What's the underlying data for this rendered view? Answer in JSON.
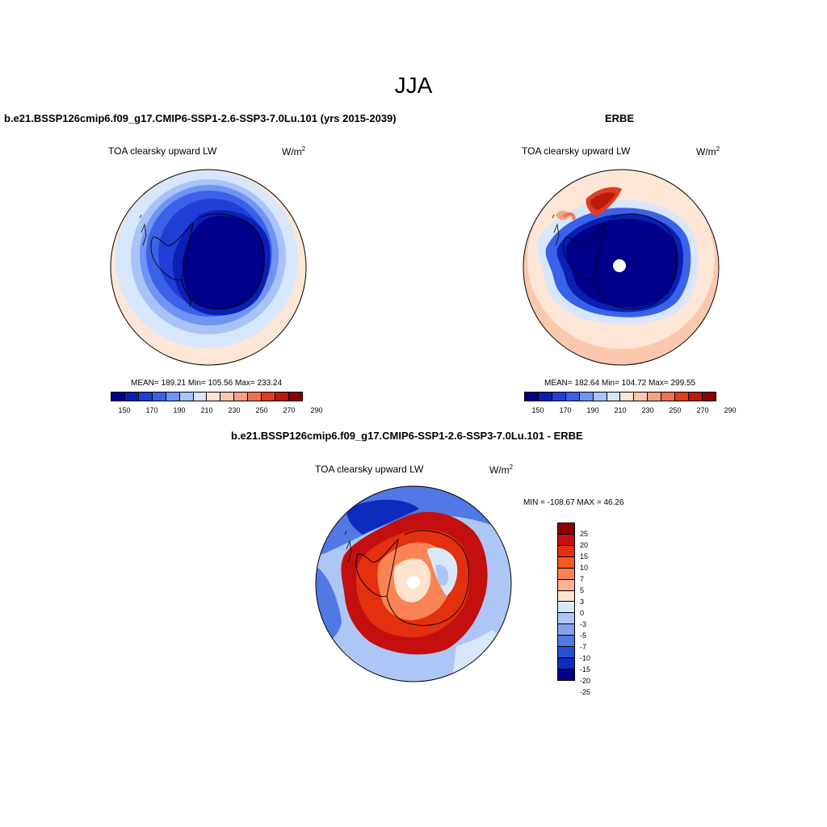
{
  "page": {
    "title": "JJA"
  },
  "panels": {
    "model": {
      "title": "b.e21.BSSP126cmip6.f09_g17.CMIP6-SSP1-2.6-SSP3-7.0Lu.101 (yrs 2015-2039)",
      "variable": "TOA clearsky upward LW",
      "units": "W/m",
      "units_sup": "2",
      "stats": "MEAN= 189.21  Min= 105.56  Max= 233.24"
    },
    "obs": {
      "title": "ERBE",
      "variable": "TOA clearsky upward LW",
      "units": "W/m",
      "units_sup": "2",
      "stats": "MEAN= 182.64  Min= 104.72  Max= 299.55"
    },
    "diff": {
      "title": "b.e21.BSSP126cmip6.f09_g17.CMIP6-SSP1-2.6-SSP3-7.0Lu.101 - ERBE",
      "variable": "TOA clearsky upward LW",
      "units": "W/m",
      "units_sup": "2",
      "minmax": "MIN = -108.67 MAX =  46.26"
    }
  },
  "colorbars": {
    "abs": {
      "colors": [
        "#00008b",
        "#0a1fb4",
        "#1f3fd6",
        "#3a62e8",
        "#6f94f2",
        "#a9c3f8",
        "#d7e6fb",
        "#fde6d6",
        "#fcc8ad",
        "#f7a383",
        "#ef7152",
        "#de3d20",
        "#bb1a0c",
        "#8b0000"
      ],
      "tick_labels": [
        "150",
        "170",
        "190",
        "210",
        "230",
        "250",
        "270",
        "290"
      ]
    },
    "diff": {
      "colors": [
        "#8b0000",
        "#c40f0f",
        "#e3300f",
        "#f45a1e",
        "#f98355",
        "#fbb291",
        "#fde3cb",
        "#d9e7fa",
        "#aec6f6",
        "#84a3ef",
        "#5079e6",
        "#2450d8",
        "#0c2cbd",
        "#00008b"
      ],
      "tick_labels": [
        "25",
        "20",
        "15",
        "10",
        "7",
        "5",
        "3",
        "0",
        "-3",
        "-5",
        "-7",
        "-10",
        "-15",
        "-20",
        "-25"
      ]
    }
  },
  "chart_data": [
    {
      "type": "heatmap",
      "projection": "south-polar-stereographic",
      "title": "b.e21.BSSP126cmip6.f09_g17.CMIP6-SSP1-2.6-SSP3-7.0Lu.101 (yrs 2015-2039)",
      "field": "TOA clearsky upward LW",
      "units": "W/m2",
      "mean": 189.21,
      "min": 105.56,
      "max": 233.24,
      "contour_levels": [
        150,
        160,
        170,
        180,
        190,
        200,
        210,
        220,
        230,
        240,
        250,
        260,
        270,
        280,
        290
      ]
    },
    {
      "type": "heatmap",
      "projection": "south-polar-stereographic",
      "title": "ERBE",
      "field": "TOA clearsky upward LW",
      "units": "W/m2",
      "mean": 182.64,
      "min": 104.72,
      "max": 299.55,
      "contour_levels": [
        150,
        160,
        170,
        180,
        190,
        200,
        210,
        220,
        230,
        240,
        250,
        260,
        270,
        280,
        290
      ]
    },
    {
      "type": "heatmap",
      "projection": "south-polar-stereographic",
      "title": "b.e21.BSSP126cmip6.f09_g17.CMIP6-SSP1-2.6-SSP3-7.0Lu.101 - ERBE",
      "field": "TOA clearsky upward LW",
      "units": "W/m2",
      "min": -108.67,
      "max": 46.26,
      "contour_levels": [
        -25,
        -20,
        -15,
        -10,
        -7,
        -5,
        -3,
        0,
        3,
        5,
        7,
        10,
        15,
        20,
        25
      ]
    }
  ]
}
